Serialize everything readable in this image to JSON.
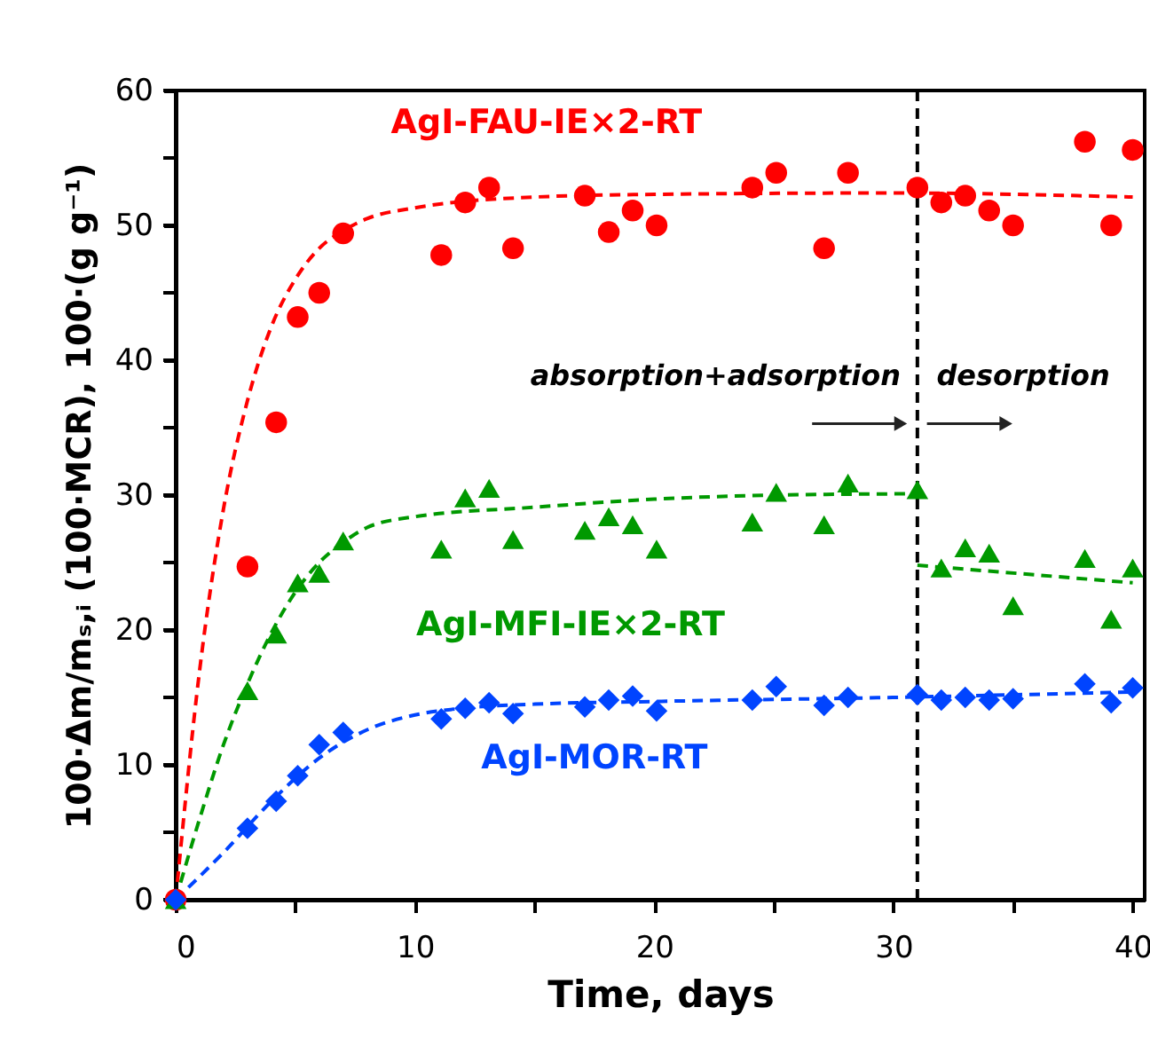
{
  "chart_data": {
    "type": "scatter",
    "xlabel": "Time, days",
    "ylabel": "100·Δm/mₛ,ᵢ (100·MCR), 100·(g g⁻¹)",
    "xlim": [
      0,
      40.5
    ],
    "ylim": [
      0,
      60
    ],
    "xticks": [
      0,
      {
        "value": 5,
        "label": null
      },
      10,
      {
        "value": 15,
        "label": null
      },
      20,
      {
        "value": 25,
        "label": null
      },
      30,
      {
        "value": 35,
        "label": null
      },
      40
    ],
    "yticks": [
      0,
      {
        "value": 5,
        "label": null
      },
      10,
      {
        "value": 15,
        "label": null
      },
      20,
      {
        "value": 25,
        "label": null
      },
      30,
      {
        "value": 35,
        "label": null
      },
      40,
      {
        "value": 45,
        "label": null
      },
      50,
      {
        "value": 55,
        "label": null
      },
      60
    ],
    "grid": false,
    "x": [
      0,
      3,
      4.2,
      5.1,
      6,
      7,
      11.1,
      12.1,
      13.1,
      14.1,
      17.1,
      18.1,
      19.1,
      20.1,
      24.1,
      25.1,
      27.1,
      28.1,
      31,
      32,
      33,
      34,
      35,
      38,
      39.1,
      40
    ],
    "series": [
      {
        "name": "AgI-FAU-IE×2-RT",
        "color": "#ff0000",
        "marker": "circle",
        "values": [
          0,
          24.7,
          35.4,
          43.2,
          45,
          49.4,
          47.8,
          51.7,
          52.8,
          48.3,
          52.2,
          49.5,
          51.1,
          50,
          52.8,
          53.9,
          48.3,
          53.9,
          52.8,
          51.7,
          52.2,
          51.1,
          50,
          56.2,
          50,
          55.6
        ]
      },
      {
        "name": "AgI-MFI-IE×2-RT",
        "color": "#009900",
        "marker": "triangle",
        "values": [
          0,
          15.5,
          19.7,
          23.5,
          24.2,
          26.6,
          26,
          29.8,
          30.5,
          26.7,
          27.4,
          28.4,
          27.8,
          26,
          28,
          30.2,
          27.8,
          30.9,
          30.4,
          24.6,
          26.1,
          25.7,
          21.8,
          25.3,
          20.8,
          24.6
        ]
      },
      {
        "name": "AgI-MOR-RT",
        "color": "#0044ff",
        "marker": "diamond",
        "values": [
          0,
          5.3,
          7.3,
          9.2,
          11.5,
          12.4,
          13.4,
          14.2,
          14.6,
          13.8,
          14.3,
          14.8,
          15.1,
          14,
          14.8,
          15.8,
          14.4,
          15,
          15.2,
          14.8,
          15,
          14.8,
          14.9,
          16,
          14.6,
          15.7
        ]
      },
      {
        "type": "line",
        "color": "#ff0000",
        "line_style": "dashed",
        "x": [
          0,
          1,
          2,
          3,
          4,
          5,
          6,
          7,
          8,
          10,
          15,
          20,
          30,
          40
        ],
        "values": [
          0,
          17,
          29,
          37,
          42.5,
          46,
          48.3,
          49.6,
          50.5,
          51.3,
          52.1,
          52.3,
          52.4,
          52.1
        ]
      },
      {
        "type": "line",
        "color": "#009900",
        "line_style": "dashed",
        "x": [
          0,
          1,
          2,
          3,
          4,
          5,
          6,
          7,
          8,
          10,
          15,
          20,
          25,
          31
        ],
        "values": [
          0,
          6,
          11.5,
          16,
          19.8,
          22.8,
          25,
          26.5,
          27.6,
          28.4,
          29.1,
          29.7,
          30,
          30.1
        ]
      },
      {
        "type": "line",
        "color": "#009900",
        "line_style": "dashed",
        "x": [
          31,
          40
        ],
        "values": [
          24.8,
          23.5
        ]
      },
      {
        "type": "line",
        "color": "#0044ff",
        "line_style": "dashed",
        "x": [
          0,
          2,
          4,
          6,
          8,
          10,
          12,
          15,
          20,
          30,
          40
        ],
        "values": [
          0,
          3.5,
          7.3,
          10.5,
          12.6,
          13.7,
          14.2,
          14.5,
          14.7,
          15,
          15.4
        ]
      }
    ],
    "ref_lines": [
      {
        "axis": "x",
        "value": 31,
        "color": "#000000",
        "line_style": "dashed"
      }
    ],
    "annotations": [
      "absorption+adsorption",
      "desorption"
    ]
  }
}
